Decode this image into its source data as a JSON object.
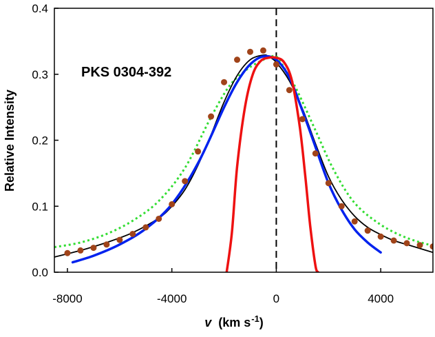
{
  "chart_data": {
    "type": "line",
    "title": "",
    "annotation": "PKS 0304-392",
    "xlabel_var": "v",
    "xlabel_units": "(km s",
    "xlabel_exp": "-1",
    "xlabel_close": ")",
    "ylabel": "Relative Intensity",
    "xlim": [
      -8500,
      6000
    ],
    "ylim": [
      0,
      0.4
    ],
    "xticks": [
      -8000,
      -4000,
      0,
      4000
    ],
    "yticks": [
      0.0,
      0.1,
      0.2,
      0.3,
      0.4
    ],
    "xtick_labels": [
      "-8000",
      "-4000",
      "0",
      "4000"
    ],
    "ytick_labels": [
      "0.0",
      "0.1",
      "0.2",
      "0.3",
      "0.4"
    ],
    "grid": false,
    "zero_line": {
      "x": 0,
      "style": "dashed",
      "color": "#000000"
    },
    "series": [
      {
        "color": "#33dd33",
        "style": "dotted",
        "x": [
          -8500,
          -7500,
          -6500,
          -5500,
          -4500,
          -3500,
          -2500,
          -1800,
          -1200,
          -700,
          -300,
          0,
          300,
          800,
          1500,
          2200,
          3000,
          4000,
          5000,
          6000
        ],
        "y": [
          0.038,
          0.045,
          0.058,
          0.078,
          0.108,
          0.158,
          0.235,
          0.282,
          0.305,
          0.318,
          0.325,
          0.327,
          0.31,
          0.275,
          0.215,
          0.155,
          0.105,
          0.072,
          0.052,
          0.04
        ]
      },
      {
        "color": "#000000",
        "style": "solid",
        "x": [
          -8500,
          -7500,
          -6500,
          -5500,
          -4500,
          -4000,
          -3500,
          -3000,
          -2500,
          -2000,
          -1500,
          -1000,
          -500,
          -300,
          0,
          500,
          1000,
          1500,
          2000,
          2500,
          3000,
          3500,
          4000,
          4500,
          5000,
          5500,
          6000
        ],
        "y": [
          0.023,
          0.033,
          0.045,
          0.06,
          0.082,
          0.1,
          0.125,
          0.162,
          0.208,
          0.258,
          0.298,
          0.322,
          0.329,
          0.327,
          0.318,
          0.29,
          0.248,
          0.195,
          0.145,
          0.11,
          0.085,
          0.068,
          0.057,
          0.048,
          0.042,
          0.036,
          0.03
        ]
      },
      {
        "color": "#0022ee",
        "style": "solid",
        "x": [
          -7800,
          -7000,
          -6000,
          -5000,
          -4000,
          -3000,
          -2000,
          -1500,
          -1000,
          -500,
          0,
          500,
          1000,
          1500,
          2000,
          2500,
          3000,
          3500,
          4000
        ],
        "y": [
          0.015,
          0.025,
          0.042,
          0.066,
          0.103,
          0.165,
          0.25,
          0.288,
          0.315,
          0.327,
          0.322,
          0.295,
          0.245,
          0.19,
          0.135,
          0.095,
          0.065,
          0.045,
          0.03
        ]
      },
      {
        "color": "#ee1111",
        "style": "solid",
        "x": [
          -1900,
          -1700,
          -1500,
          -1200,
          -900,
          -600,
          -300,
          0,
          300,
          600,
          900,
          1100,
          1300,
          1500,
          1600
        ],
        "y": [
          0.0,
          0.06,
          0.16,
          0.25,
          0.3,
          0.32,
          0.325,
          0.325,
          0.318,
          0.29,
          0.22,
          0.15,
          0.07,
          0.01,
          0.0
        ]
      },
      {
        "color": "#a0441a",
        "style": "dots",
        "x": [
          -8000,
          -7500,
          -7000,
          -6500,
          -6000,
          -5500,
          -5000,
          -4500,
          -4000,
          -3500,
          -3000,
          -2500,
          -2000,
          -1500,
          -1000,
          -500,
          0,
          500,
          1000,
          1500,
          2000,
          2500,
          3000,
          3500,
          4000,
          4500,
          5000,
          5500,
          6000
        ],
        "y": [
          0.029,
          0.033,
          0.037,
          0.042,
          0.049,
          0.058,
          0.068,
          0.081,
          0.103,
          0.138,
          0.183,
          0.236,
          0.288,
          0.322,
          0.334,
          0.336,
          0.315,
          0.276,
          0.232,
          0.18,
          0.135,
          0.1,
          0.077,
          0.063,
          0.054,
          0.048,
          0.044,
          0.041,
          0.039
        ]
      }
    ]
  }
}
